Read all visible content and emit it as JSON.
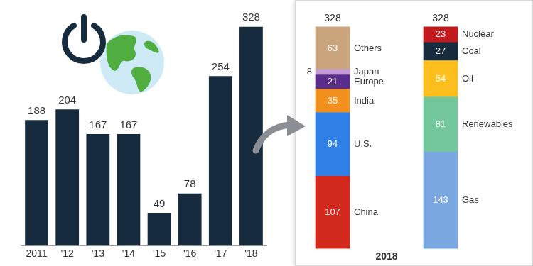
{
  "chart_data": [
    {
      "type": "bar",
      "categories": [
        "2011",
        "'12",
        "'13",
        "'14",
        "'15",
        "'16",
        "'17",
        "'18"
      ],
      "values": [
        188,
        204,
        167,
        167,
        49,
        78,
        254,
        328
      ],
      "color": "#172b3f",
      "ylim": [
        0,
        350
      ],
      "data_labels": true,
      "tick_labels": "x",
      "grid": false
    },
    {
      "type": "bar",
      "stacked": true,
      "xlabel": "2018",
      "categories": [
        null,
        null
      ],
      "series": [
        {
          "name": "China",
          "color": "#d3291c",
          "values": [
            107,
            null
          ]
        },
        {
          "name": "U.S.",
          "color": "#2f7fe6",
          "values": [
            94,
            null
          ]
        },
        {
          "name": "India",
          "color": "#f2901e",
          "values": [
            35,
            null
          ]
        },
        {
          "name": "Europe",
          "color": "#5a2d8c",
          "values": [
            21,
            null
          ]
        },
        {
          "name": "Japan",
          "color": "#c49ad8",
          "values": [
            8,
            null
          ]
        },
        {
          "name": "Others",
          "color": "#c9a47c",
          "values": [
            63,
            null
          ]
        },
        {
          "name": "Gas",
          "color": "#7ba7e1",
          "values": [
            null,
            143
          ]
        },
        {
          "name": "Renewables",
          "color": "#73c79c",
          "values": [
            null,
            81
          ]
        },
        {
          "name": "Oil",
          "color": "#fcbf1e",
          "values": [
            null,
            54
          ]
        },
        {
          "name": "Coal",
          "color": "#172b3f",
          "values": [
            null,
            27
          ]
        },
        {
          "name": "Nuclear",
          "color": "#c2191f",
          "values": [
            null,
            23
          ]
        }
      ],
      "totals": [
        328,
        328
      ],
      "ylim": [
        0,
        350
      ],
      "data_labels": true,
      "tick_labels": false,
      "grid": false
    }
  ]
}
